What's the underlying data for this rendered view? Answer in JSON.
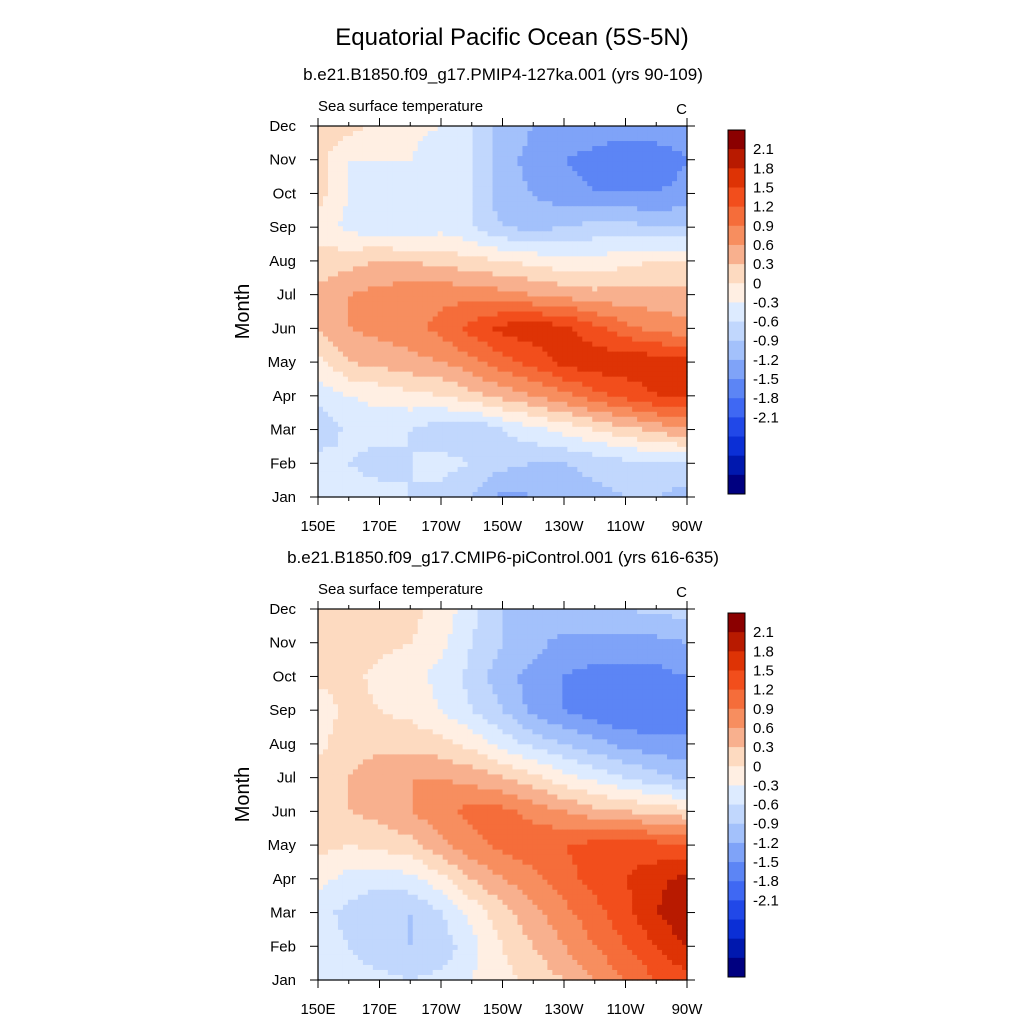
{
  "figure": {
    "title": "Equatorial Pacific Ocean (5S-5N)"
  },
  "chart_data": [
    {
      "type": "heatmap",
      "title": "b.e21.B1850.f09_g17.PMIP4-127ka.001 (yrs 90-109)",
      "subtitle_left": "Sea surface temperature",
      "units": "C",
      "ylabel": "Month",
      "x_ticks": [
        "150E",
        "170E",
        "170W",
        "150W",
        "130W",
        "110W",
        "90W"
      ],
      "y_ticks": [
        "Jan",
        "Feb",
        "Mar",
        "Apr",
        "May",
        "Jun",
        "Jul",
        "Aug",
        "Sep",
        "Oct",
        "Nov",
        "Dec"
      ],
      "xlim": [
        150,
        270
      ],
      "z_range": [
        -2.1,
        2.1
      ],
      "x": [
        150,
        160,
        170,
        180,
        190,
        200,
        210,
        220,
        230,
        240,
        250,
        260,
        270
      ],
      "y": [
        "Jan",
        "Feb",
        "Mar",
        "Apr",
        "May",
        "Jun",
        "Jul",
        "Aug",
        "Sep",
        "Oct",
        "Nov",
        "Dec"
      ],
      "z": [
        [
          -0.6,
          -0.5,
          -0.5,
          -0.6,
          -0.7,
          -0.9,
          -1.3,
          -1.2,
          -1.1,
          -1.0,
          -0.9,
          -0.9,
          -1.0
        ],
        [
          -0.4,
          -0.6,
          -0.7,
          -0.6,
          -0.5,
          -0.6,
          -0.8,
          -0.9,
          -0.9,
          -0.8,
          -0.7,
          -0.7,
          -0.7
        ],
        [
          -0.9,
          -0.5,
          -0.5,
          -0.6,
          -0.8,
          -0.9,
          -0.6,
          -0.4,
          -0.2,
          0.0,
          0.2,
          0.4,
          0.6
        ],
        [
          -0.5,
          -0.3,
          -0.2,
          -0.1,
          0.0,
          0.2,
          0.4,
          0.6,
          0.8,
          1.1,
          1.3,
          1.5,
          1.6
        ],
        [
          -0.1,
          0.3,
          0.4,
          0.5,
          0.6,
          0.8,
          1.1,
          1.3,
          1.6,
          1.7,
          1.7,
          1.7,
          1.6
        ],
        [
          0.3,
          0.6,
          0.7,
          0.8,
          1.0,
          1.3,
          1.6,
          1.7,
          1.6,
          1.3,
          1.0,
          0.8,
          0.7
        ],
        [
          0.4,
          0.6,
          0.7,
          0.8,
          0.8,
          0.8,
          0.7,
          0.6,
          0.5,
          0.4,
          0.4,
          0.4,
          0.4
        ],
        [
          0.1,
          0.2,
          0.3,
          0.3,
          0.2,
          0.1,
          0.0,
          -0.1,
          -0.2,
          -0.2,
          -0.1,
          0.0,
          0.0
        ],
        [
          -0.1,
          -0.4,
          -0.5,
          -0.6,
          -0.4,
          -0.6,
          -0.9,
          -1.0,
          -0.9,
          -0.8,
          -0.8,
          -0.9,
          -0.9
        ],
        [
          0.1,
          -0.3,
          -0.4,
          -0.4,
          -0.3,
          -0.6,
          -1.1,
          -1.2,
          -1.4,
          -1.5,
          -1.5,
          -1.5,
          -1.4
        ],
        [
          0.1,
          -0.3,
          -0.3,
          -0.3,
          -0.5,
          -0.6,
          -1.1,
          -1.3,
          -1.5,
          -1.6,
          -1.8,
          -1.7,
          -1.5
        ],
        [
          0.2,
          0.1,
          -0.1,
          -0.2,
          -0.3,
          -0.6,
          -1.0,
          -1.2,
          -1.3,
          -1.3,
          -1.3,
          -1.3,
          -1.3
        ]
      ]
    },
    {
      "type": "heatmap",
      "title": "b.e21.B1850.f09_g17.CMIP6-piControl.001 (yrs 616-635)",
      "subtitle_left": "Sea surface temperature",
      "units": "C",
      "ylabel": "Month",
      "x_ticks": [
        "150E",
        "170E",
        "170W",
        "150W",
        "130W",
        "110W",
        "90W"
      ],
      "y_ticks": [
        "Jan",
        "Feb",
        "Mar",
        "Apr",
        "May",
        "Jun",
        "Jul",
        "Aug",
        "Sep",
        "Oct",
        "Nov",
        "Dec"
      ],
      "xlim": [
        150,
        270
      ],
      "z_range": [
        -2.1,
        2.1
      ],
      "x": [
        150,
        160,
        170,
        180,
        190,
        200,
        210,
        220,
        230,
        240,
        250,
        260,
        270
      ],
      "y": [
        "Jan",
        "Feb",
        "Mar",
        "Apr",
        "May",
        "Jun",
        "Jul",
        "Aug",
        "Sep",
        "Oct",
        "Nov",
        "Dec"
      ],
      "z": [
        [
          -0.4,
          -0.5,
          -0.5,
          -0.6,
          -0.5,
          -0.3,
          -0.1,
          0.1,
          0.3,
          0.6,
          0.9,
          1.2,
          1.4
        ],
        [
          -0.4,
          -0.6,
          -0.8,
          -0.9,
          -0.8,
          -0.4,
          0.0,
          0.3,
          0.6,
          0.9,
          1.2,
          1.5,
          1.8
        ],
        [
          -0.5,
          -0.7,
          -0.9,
          -0.9,
          -0.6,
          -0.2,
          0.2,
          0.5,
          0.8,
          1.1,
          1.4,
          1.8,
          2.1
        ],
        [
          -0.2,
          -0.4,
          -0.5,
          -0.4,
          -0.1,
          0.3,
          0.6,
          0.8,
          1.1,
          1.3,
          1.5,
          1.7,
          1.9
        ],
        [
          0.1,
          0.0,
          0.1,
          0.2,
          0.5,
          0.8,
          1.0,
          1.1,
          1.2,
          1.3,
          1.4,
          1.3,
          1.2
        ],
        [
          0.2,
          0.3,
          0.4,
          0.6,
          0.8,
          1.0,
          1.0,
          0.8,
          0.6,
          0.4,
          0.3,
          0.2,
          0.1
        ],
        [
          0.2,
          0.3,
          0.5,
          0.6,
          0.6,
          0.5,
          0.3,
          0.1,
          -0.2,
          -0.4,
          -0.6,
          -0.8,
          -1.0
        ],
        [
          -0.1,
          0.2,
          0.2,
          0.2,
          0.1,
          -0.1,
          -0.4,
          -0.7,
          -0.9,
          -1.1,
          -1.3,
          -1.4,
          -1.4
        ],
        [
          -0.2,
          0.1,
          0.0,
          -0.1,
          -0.3,
          -0.6,
          -0.9,
          -1.3,
          -1.5,
          -1.7,
          -1.8,
          -1.8,
          -1.7
        ],
        [
          0.1,
          0.1,
          -0.1,
          -0.2,
          -0.4,
          -0.7,
          -1.1,
          -1.3,
          -1.5,
          -1.6,
          -1.6,
          -1.6,
          -1.5
        ],
        [
          0.2,
          0.2,
          0.1,
          0.0,
          -0.2,
          -0.6,
          -0.9,
          -1.1,
          -1.3,
          -1.3,
          -1.3,
          -1.3,
          -1.2
        ],
        [
          0.2,
          0.2,
          0.2,
          0.1,
          -0.1,
          -0.5,
          -0.9,
          -1.0,
          -1.0,
          -0.9,
          -0.9,
          -0.8,
          -0.8
        ]
      ]
    }
  ],
  "colorbar": {
    "labels": [
      "2.1",
      "1.8",
      "1.5",
      "1.2",
      "0.9",
      "0.6",
      "0.3",
      "0",
      "-0.3",
      "-0.6",
      "-0.9",
      "-1.2",
      "-1.5",
      "-1.8",
      "-2.1"
    ],
    "colors": [
      "#8B0000",
      "#B81A00",
      "#DE3305",
      "#F24E1C",
      "#F56D3A",
      "#F78E5F",
      "#F8B08E",
      "#FDDAC0",
      "#FFEFE3",
      "#DDEBFF",
      "#C1D7FD",
      "#A3C1FB",
      "#7FA3F8",
      "#5C85F5",
      "#3F68F3",
      "#2148E8",
      "#0B2FD6",
      "#0018AE",
      "#000080"
    ]
  }
}
